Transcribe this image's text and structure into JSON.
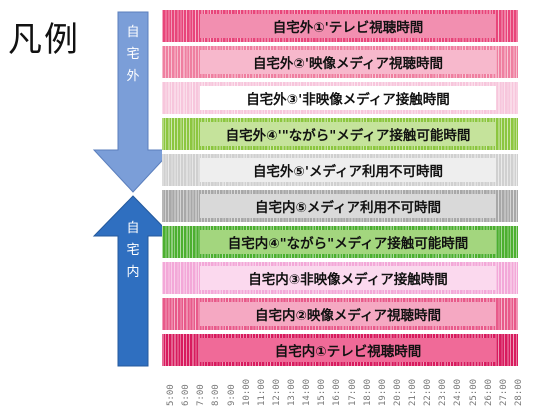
{
  "title": "凡例",
  "arrows": {
    "outside_label": "自宅外",
    "inside_label": "自宅内",
    "outside_color": "#7b9ed8",
    "inside_color": "#2f6fc0"
  },
  "bands": [
    {
      "label": "自宅外①'テレビ視聴時間",
      "color": "#e8457a",
      "label_bg": "#f28fb0"
    },
    {
      "label": "自宅外②'映像メディア視聴時間",
      "color": "#ef7fa0",
      "label_bg": "#f7b8cc"
    },
    {
      "label": "自宅外③'非映像メディア接触時間",
      "color": "#f7c6dc",
      "label_bg": "#ffffff"
    },
    {
      "label": "自宅外④'\"ながら\"メディア接触可能時間",
      "color": "#8cc63f",
      "label_bg": "#c5e39b"
    },
    {
      "label": "自宅外⑤'メディア利用不可時間",
      "color": "#d0d0d0",
      "label_bg": "#eeeeee"
    },
    {
      "label": "自宅内⑤メディア利用不可時間",
      "color": "#a8a8a8",
      "label_bg": "#d9d9d9"
    },
    {
      "label": "自宅内④\"ながら\"メディア接触可能時間",
      "color": "#4caf2f",
      "label_bg": "#a3d67e"
    },
    {
      "label": "自宅内③非映像メディア接触時間",
      "color": "#f3a8d8",
      "label_bg": "#fbd9ee"
    },
    {
      "label": "自宅内②映像メディア視聴時間",
      "color": "#e85a8a",
      "label_bg": "#f5a8c2"
    },
    {
      "label": "自宅内①テレビ視聴時間",
      "color": "#d81b5e",
      "label_bg": "#f06a98"
    }
  ],
  "ticks": [
    "5:00",
    "6:00",
    "7:00",
    "8:00",
    "9:00",
    "10:00",
    "11:00",
    "12:00",
    "13:00",
    "14:00",
    "15:00",
    "16:00",
    "17:00",
    "18:00",
    "19:00",
    "20:00",
    "21:00",
    "22:00",
    "23:00",
    "24:00",
    "25:00",
    "26:00",
    "27:00",
    "28:00"
  ]
}
